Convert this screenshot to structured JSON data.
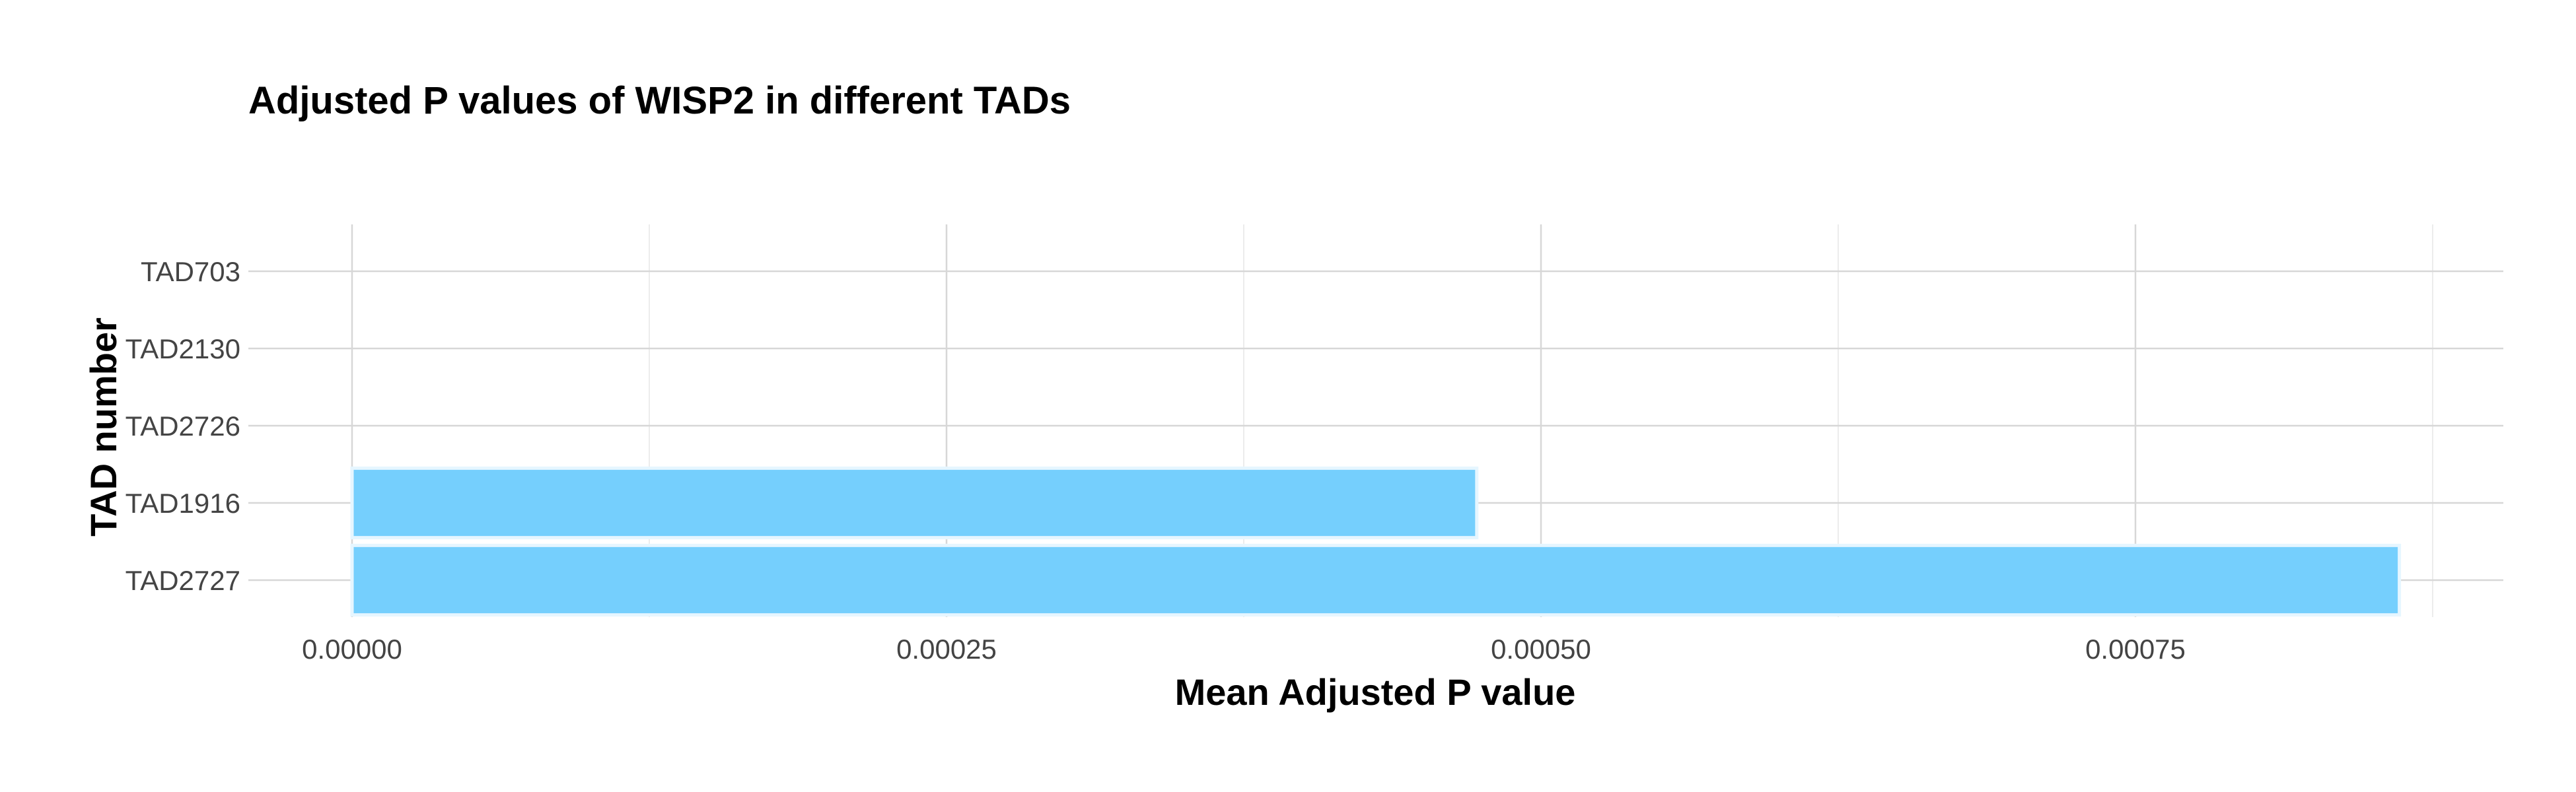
{
  "chart_data": {
    "type": "bar",
    "orientation": "horizontal",
    "title": "Adjusted P values of WISP2 in different TADs",
    "xlabel": "Mean Adjusted P value",
    "ylabel": "TAD number",
    "categories": [
      "TAD703",
      "TAD2130",
      "TAD2726",
      "TAD1916",
      "TAD2727"
    ],
    "values": [
      0.0,
      0.0,
      0.0,
      0.000473,
      0.000861
    ],
    "xlim": [
      0,
      0.00087
    ],
    "xticks": [
      0.0,
      0.00025,
      0.0005,
      0.00075
    ],
    "xtick_labels": [
      "0.00000",
      "0.00025",
      "0.00050",
      "0.00075"
    ],
    "grid": true,
    "legend": "none",
    "colors": {
      "bar": "#75CFFD",
      "bar_outline": "#E6F6FF"
    }
  }
}
